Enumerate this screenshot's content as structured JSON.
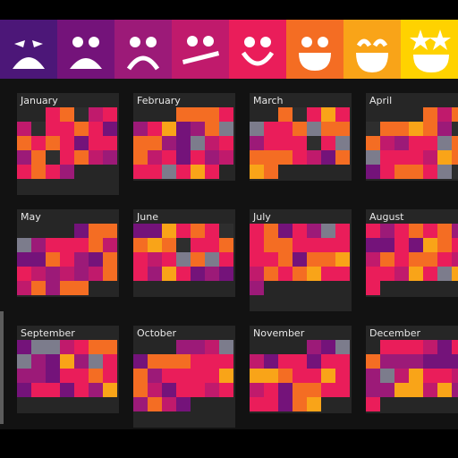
{
  "colors": {
    "m1": "#4c1778",
    "m2": "#74137a",
    "m3": "#9c1a78",
    "m4": "#c01a6c",
    "m5": "#ea1d5a",
    "m6": "#f46d23",
    "m7": "#f9a418",
    "m8": "#ffd200",
    "empty": "#2e2e2e",
    "gray": "#7c7c8c",
    "card": "#262626"
  },
  "moods": [
    {
      "name": "terrible",
      "icon": "very-sad-face-icon"
    },
    {
      "name": "bad",
      "icon": "sad-face-icon"
    },
    {
      "name": "poor",
      "icon": "frown-face-icon"
    },
    {
      "name": "meh",
      "icon": "meh-face-icon"
    },
    {
      "name": "ok",
      "icon": "smile-face-icon"
    },
    {
      "name": "good",
      "icon": "grin-face-icon"
    },
    {
      "name": "great",
      "icon": "big-grin-face-icon"
    },
    {
      "name": "amazing",
      "icon": "star-eyes-face-icon"
    }
  ],
  "months": [
    {
      "label": "January"
    },
    {
      "label": "February"
    },
    {
      "label": "March"
    },
    {
      "label": "April"
    },
    {
      "label": "May"
    },
    {
      "label": "June"
    },
    {
      "label": "July"
    },
    {
      "label": "August"
    },
    {
      "label": "September"
    },
    {
      "label": "October"
    },
    {
      "label": "November"
    },
    {
      "label": "December"
    }
  ]
}
